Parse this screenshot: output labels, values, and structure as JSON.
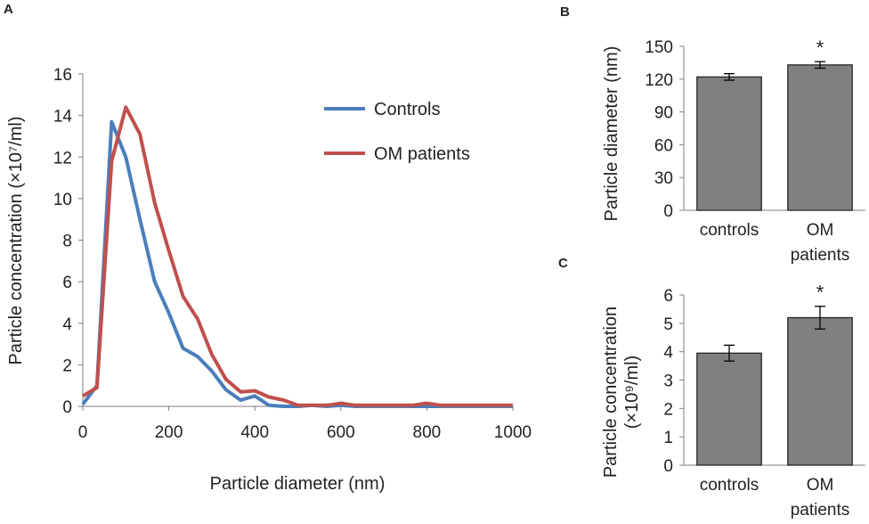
{
  "chart_data": [
    {
      "panel": "A",
      "type": "line",
      "xlabel": "Particle diameter (nm)",
      "ylabel": "Particle concentration (×10⁷/ml)",
      "xlim": [
        0,
        1000
      ],
      "ylim": [
        0,
        16
      ],
      "xticks": [
        0,
        200,
        400,
        600,
        800,
        1000
      ],
      "yticks": [
        0,
        2,
        4,
        6,
        8,
        10,
        12,
        14,
        16
      ],
      "legend_position": "top-right",
      "series": [
        {
          "name": "Controls",
          "color": "#4a7ebb",
          "x": [
            0,
            33,
            67,
            100,
            133,
            167,
            200,
            233,
            267,
            300,
            333,
            367,
            400,
            433,
            467,
            500,
            533,
            567,
            600,
            633,
            667,
            700,
            733,
            767,
            800,
            833,
            867,
            900,
            933,
            967,
            1000
          ],
          "y": [
            0.1,
            1.0,
            13.7,
            12.0,
            9.0,
            6.0,
            4.5,
            2.8,
            2.4,
            1.7,
            0.8,
            0.3,
            0.5,
            0.05,
            0.0,
            0.0,
            0.05,
            0.0,
            0.05,
            0.0,
            0.0,
            0.0,
            0.0,
            0.0,
            0.0,
            0.0,
            0.0,
            0.0,
            0.0,
            0.0,
            0.0
          ]
        },
        {
          "name": "OM patients",
          "color": "#c0504d",
          "x": [
            0,
            33,
            67,
            100,
            133,
            167,
            200,
            233,
            267,
            300,
            333,
            367,
            400,
            433,
            467,
            500,
            533,
            567,
            600,
            633,
            667,
            700,
            733,
            767,
            800,
            833,
            867,
            900,
            933,
            967,
            1000
          ],
          "y": [
            0.5,
            0.9,
            11.8,
            14.4,
            13.1,
            9.8,
            7.5,
            5.3,
            4.2,
            2.5,
            1.3,
            0.7,
            0.75,
            0.45,
            0.3,
            0.05,
            0.05,
            0.05,
            0.15,
            0.05,
            0.05,
            0.05,
            0.05,
            0.05,
            0.15,
            0.05,
            0.05,
            0.05,
            0.05,
            0.05,
            0.05
          ]
        }
      ]
    },
    {
      "panel": "B",
      "type": "bar",
      "ylabel": "Particle diameter (nm)",
      "categories": [
        "controls",
        "OM patients"
      ],
      "values": [
        122,
        133
      ],
      "errors": [
        3,
        3
      ],
      "significance": [
        "",
        "*"
      ],
      "ylim": [
        0,
        150
      ],
      "yticks": [
        0,
        30,
        60,
        90,
        120,
        150
      ],
      "bar_color": "#808080"
    },
    {
      "panel": "C",
      "type": "bar",
      "ylabel": "Particle concentration (×10⁹/ml)",
      "categories": [
        "controls",
        "OM patients"
      ],
      "values": [
        3.95,
        5.2
      ],
      "errors": [
        0.28,
        0.4
      ],
      "significance": [
        "",
        "*"
      ],
      "ylim": [
        0,
        6
      ],
      "yticks": [
        0,
        1,
        2,
        3,
        4,
        5,
        6
      ],
      "bar_color": "#808080"
    }
  ]
}
